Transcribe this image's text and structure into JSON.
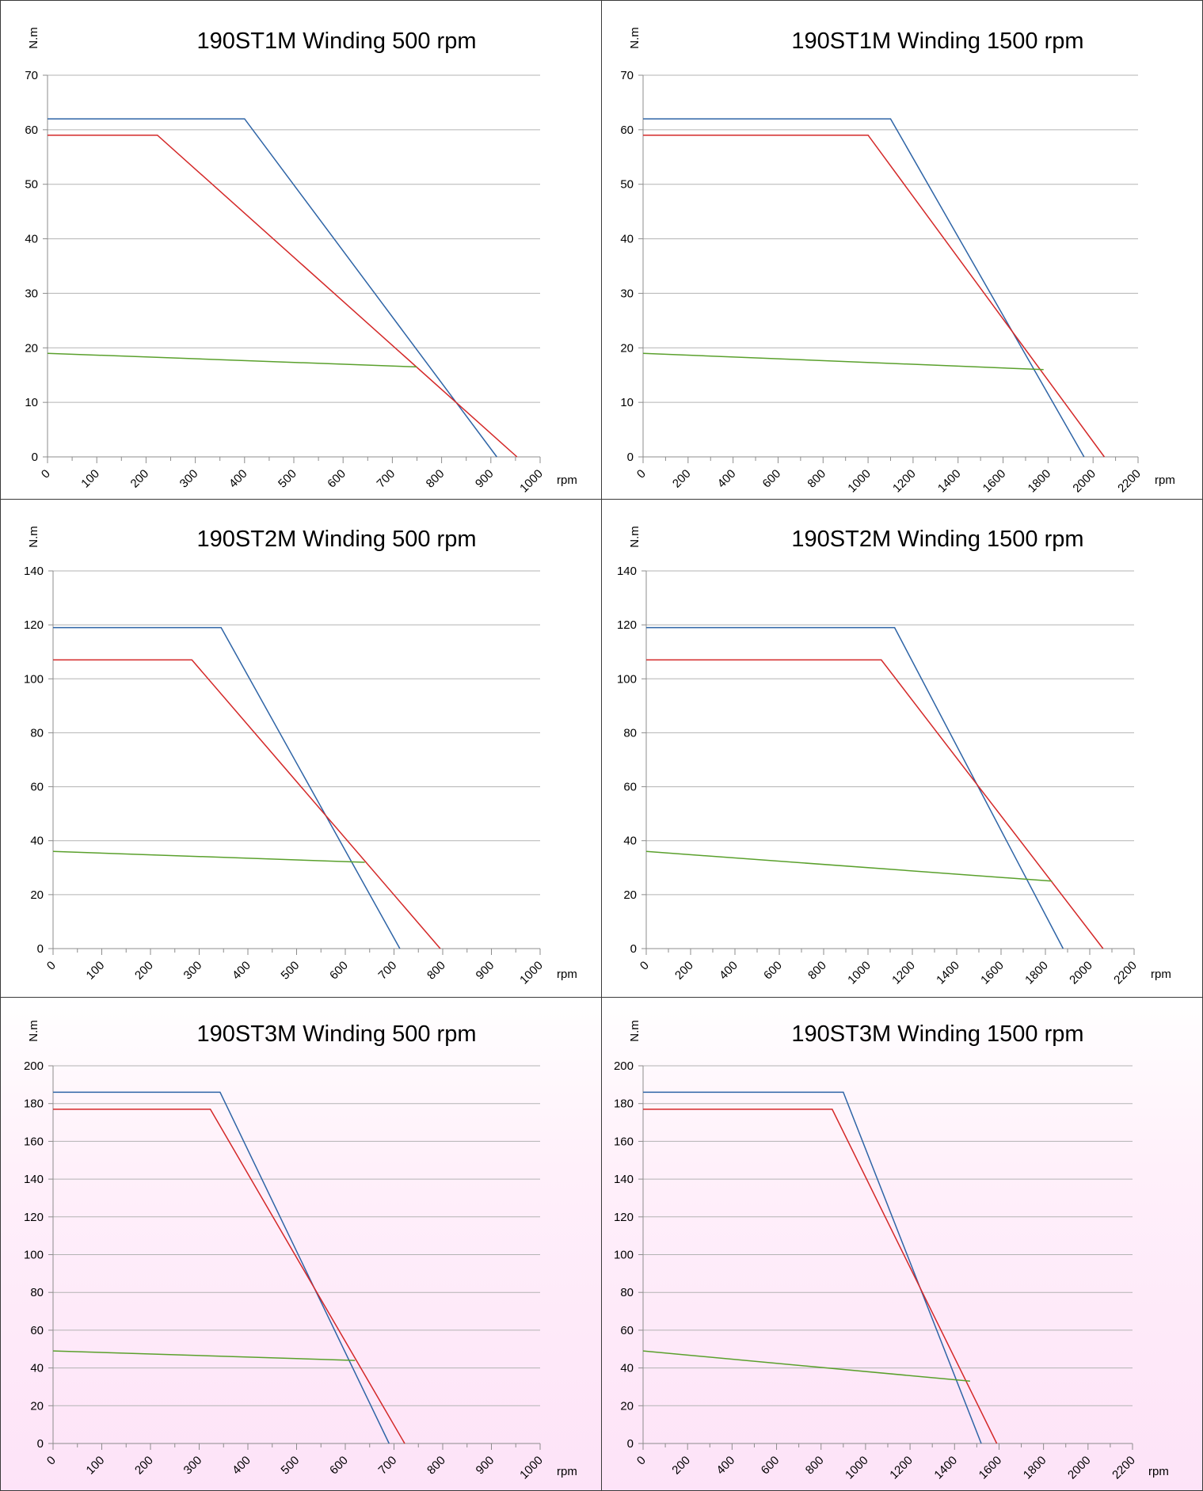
{
  "colors": {
    "blue": "#2e64a6",
    "red": "#d42828",
    "green": "#5aa02c",
    "grid": "#b3b3b3",
    "axis": "#8c8c8c",
    "border": "#3a3a3a"
  },
  "chart_data": [
    {
      "type": "line",
      "title": "190ST1M Winding 500 rpm",
      "ylabel": "N.m",
      "xlabel": "rpm",
      "xlim": [
        0,
        1000
      ],
      "ylim": [
        0,
        70
      ],
      "xticks": [
        0,
        100,
        200,
        300,
        400,
        500,
        600,
        700,
        800,
        900,
        1000
      ],
      "yticks": [
        0,
        10,
        20,
        30,
        40,
        50,
        60,
        70
      ],
      "grid": true,
      "series": [
        {
          "color": "blue",
          "points": [
            [
              0,
              62
            ],
            [
              400,
              62
            ],
            [
              912,
              0
            ]
          ]
        },
        {
          "color": "red",
          "points": [
            [
              0,
              59
            ],
            [
              223,
              59
            ],
            [
              953,
              0
            ]
          ]
        },
        {
          "color": "green",
          "points": [
            [
              0,
              19
            ],
            [
              750,
              16.5
            ]
          ]
        }
      ]
    },
    {
      "type": "line",
      "title": "190ST1M Winding 1500 rpm",
      "ylabel": "N.m",
      "xlabel": "rpm",
      "xlim": [
        0,
        2200
      ],
      "ylim": [
        0,
        70
      ],
      "xticks": [
        0,
        200,
        400,
        600,
        800,
        1000,
        1200,
        1400,
        1600,
        1800,
        2000,
        2200
      ],
      "yticks": [
        0,
        10,
        20,
        30,
        40,
        50,
        60,
        70
      ],
      "grid": true,
      "series": [
        {
          "color": "blue",
          "points": [
            [
              0,
              62
            ],
            [
              1100,
              62
            ],
            [
              1960,
              0
            ]
          ]
        },
        {
          "color": "red",
          "points": [
            [
              0,
              59
            ],
            [
              1000,
              59
            ],
            [
              2050,
              0
            ]
          ]
        },
        {
          "color": "green",
          "points": [
            [
              0,
              19
            ],
            [
              1780,
              16
            ]
          ]
        }
      ]
    },
    {
      "type": "line",
      "title": "190ST2M Winding 500 rpm",
      "ylabel": "N.m",
      "xlabel": "rpm",
      "xlim": [
        0,
        1000
      ],
      "ylim": [
        0,
        140
      ],
      "xticks": [
        0,
        100,
        200,
        300,
        400,
        500,
        600,
        700,
        800,
        900,
        1000
      ],
      "yticks": [
        0,
        20,
        40,
        60,
        80,
        100,
        120,
        140
      ],
      "grid": true,
      "series": [
        {
          "color": "blue",
          "points": [
            [
              0,
              119
            ],
            [
              345,
              119
            ],
            [
              712,
              0
            ]
          ]
        },
        {
          "color": "red",
          "points": [
            [
              0,
              107
            ],
            [
              285,
              107
            ],
            [
              795,
              0
            ]
          ]
        },
        {
          "color": "green",
          "points": [
            [
              0,
              36
            ],
            [
              640,
              32
            ]
          ]
        }
      ]
    },
    {
      "type": "line",
      "title": "190ST2M Winding 1500 rpm",
      "ylabel": "N.m",
      "xlabel": "rpm",
      "xlim": [
        0,
        2200
      ],
      "ylim": [
        0,
        140
      ],
      "xticks": [
        0,
        200,
        400,
        600,
        800,
        1000,
        1200,
        1400,
        1600,
        1800,
        2000,
        2200
      ],
      "yticks": [
        0,
        20,
        40,
        60,
        80,
        100,
        120,
        140
      ],
      "grid": true,
      "series": [
        {
          "color": "blue",
          "points": [
            [
              0,
              119
            ],
            [
              1120,
              119
            ],
            [
              1880,
              0
            ]
          ]
        },
        {
          "color": "red",
          "points": [
            [
              0,
              107
            ],
            [
              1060,
              107
            ],
            [
              2060,
              0
            ]
          ]
        },
        {
          "color": "green",
          "points": [
            [
              0,
              36
            ],
            [
              1830,
              25
            ]
          ]
        }
      ]
    },
    {
      "type": "line",
      "title": "190ST3M Winding 500 rpm",
      "ylabel": "N.m",
      "xlabel": "rpm",
      "xlim": [
        0,
        1000
      ],
      "ylim": [
        0,
        200
      ],
      "xticks": [
        0,
        100,
        200,
        300,
        400,
        500,
        600,
        700,
        800,
        900,
        1000
      ],
      "yticks": [
        0,
        20,
        40,
        60,
        80,
        100,
        120,
        140,
        160,
        180,
        200
      ],
      "grid": true,
      "series": [
        {
          "color": "blue",
          "points": [
            [
              0,
              186
            ],
            [
              343,
              186
            ],
            [
              690,
              0
            ]
          ]
        },
        {
          "color": "red",
          "points": [
            [
              0,
              177
            ],
            [
              323,
              177
            ],
            [
              722,
              0
            ]
          ]
        },
        {
          "color": "green",
          "points": [
            [
              0,
              49
            ],
            [
              620,
              44
            ]
          ]
        }
      ]
    },
    {
      "type": "line",
      "title": "190ST3M Winding 1500 rpm",
      "ylabel": "N.m",
      "xlabel": "rpm",
      "xlim": [
        0,
        2200
      ],
      "ylim": [
        0,
        200
      ],
      "xticks": [
        0,
        200,
        400,
        600,
        800,
        1000,
        1200,
        1400,
        1600,
        1800,
        2000,
        2200
      ],
      "yticks": [
        0,
        20,
        40,
        60,
        80,
        100,
        120,
        140,
        160,
        180,
        200
      ],
      "grid": true,
      "series": [
        {
          "color": "blue",
          "points": [
            [
              0,
              186
            ],
            [
              900,
              186
            ],
            [
              1520,
              0
            ]
          ]
        },
        {
          "color": "red",
          "points": [
            [
              0,
              177
            ],
            [
              850,
              177
            ],
            [
              1590,
              0
            ]
          ]
        },
        {
          "color": "green",
          "points": [
            [
              0,
              49
            ],
            [
              1470,
              33
            ]
          ]
        }
      ]
    }
  ]
}
